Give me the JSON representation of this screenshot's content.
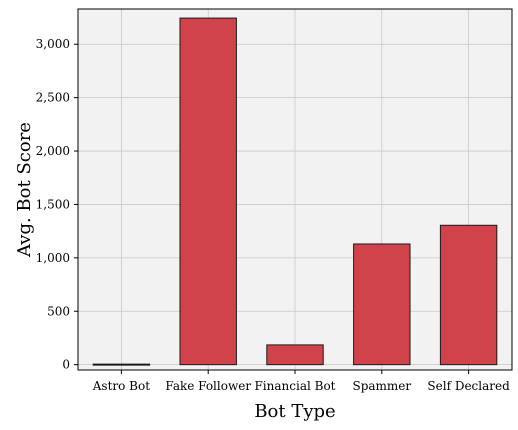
{
  "chart_data": {
    "type": "bar",
    "categories": [
      "Astro Bot",
      "Fake Follower",
      "Financial Bot",
      "Spammer",
      "Self Declared"
    ],
    "values": [
      5,
      3245,
      185,
      1130,
      1305
    ],
    "title": "",
    "xlabel": "Bot Type",
    "ylabel": "Avg. Bot Score",
    "ylim": [
      -50,
      3330
    ],
    "yticks": [
      0,
      500,
      1000,
      1500,
      2000,
      2500,
      3000
    ],
    "ytick_labels": [
      "0",
      "500",
      "1,000",
      "1,500",
      "2,000",
      "2,500",
      "3,000"
    ],
    "grid": true,
    "legend": "none",
    "colors": {
      "bar_fill": "#d1434a",
      "bar_edge": "#1a1a1a",
      "plot_background": "#f2f2f2",
      "grid": "#c8c8c8",
      "axis": "#000000"
    }
  }
}
